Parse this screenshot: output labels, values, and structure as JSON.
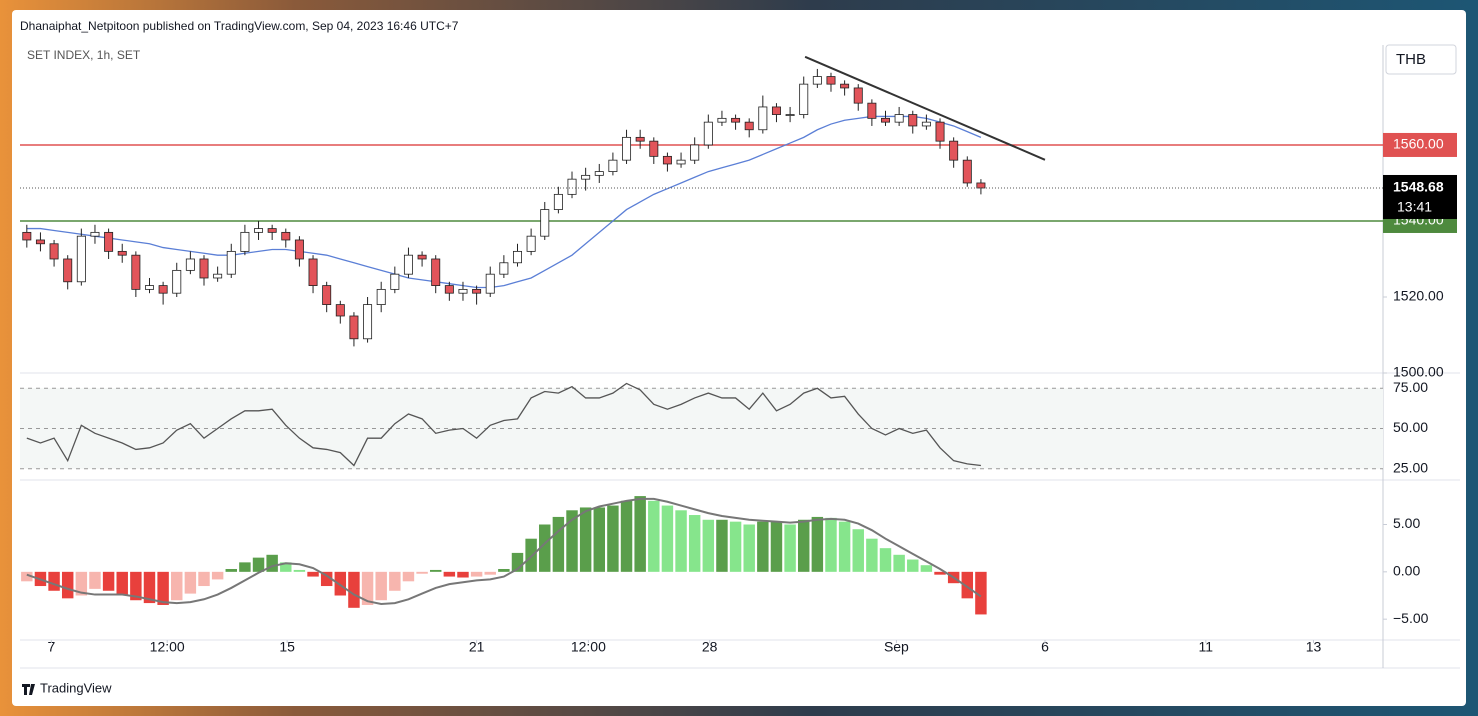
{
  "header": {
    "text": "Dhanaiphat_Netpitoon published on TradingView.com, Sep 04, 2023 16:46 UTC+7"
  },
  "footer": {
    "brand": "TradingView"
  },
  "chart_data": [
    {
      "type": "candlestick",
      "title": "SET INDEX, 1h, SET",
      "currency": "THB",
      "countdown": "13:41",
      "up_color": "#ffffff",
      "down_color": "#e2545a",
      "border_color": "#222222",
      "ma_color": "#5b7fd6",
      "xlim": [
        -0.5,
        99.5
      ],
      "xticks": [
        {
          "value": 1.8,
          "label": "7"
        },
        {
          "value": 10.3,
          "label": "12:00"
        },
        {
          "value": 19.1,
          "label": "15"
        },
        {
          "value": 33,
          "label": "21"
        },
        {
          "value": 41.2,
          "label": "12:00"
        },
        {
          "value": 50.1,
          "label": "28"
        },
        {
          "value": 63.8,
          "label": "Sep"
        },
        {
          "value": 74.7,
          "label": "6"
        },
        {
          "value": 86.5,
          "label": "11"
        },
        {
          "value": 94.4,
          "label": "13"
        }
      ],
      "ylim": [
        1500,
        1586.3
      ],
      "yticks": [
        {
          "value": 1520,
          "label": "1520.00"
        },
        {
          "value": 1500,
          "label": "1500.00"
        }
      ],
      "hlines": [
        {
          "value": 1560,
          "label": "1560.00",
          "color": "#e05252"
        },
        {
          "value": 1540,
          "label": "1540.00",
          "color": "#4e8a3e"
        }
      ],
      "trendline": {
        "x": [
          57.1,
          74.7
        ],
        "y": [
          1583.2,
          1556.1
        ],
        "color": "#333333"
      },
      "ohlc": [
        [
          1537,
          1539,
          1533,
          1535
        ],
        [
          1535,
          1537,
          1532,
          1534
        ],
        [
          1534,
          1535,
          1528,
          1530
        ],
        [
          1530,
          1531,
          1522,
          1524
        ],
        [
          1524,
          1538,
          1523,
          1536
        ],
        [
          1536,
          1539,
          1534,
          1537
        ],
        [
          1537,
          1538,
          1530,
          1532
        ],
        [
          1532,
          1534,
          1529,
          1531
        ],
        [
          1531,
          1532,
          1520,
          1522
        ],
        [
          1522,
          1525,
          1521,
          1523
        ],
        [
          1523,
          1524,
          1518,
          1521
        ],
        [
          1521,
          1529,
          1520,
          1527
        ],
        [
          1527,
          1532,
          1526,
          1530
        ],
        [
          1530,
          1531,
          1523,
          1525
        ],
        [
          1525,
          1528,
          1524,
          1526
        ],
        [
          1526,
          1534,
          1525,
          1532
        ],
        [
          1532,
          1539,
          1531,
          1537
        ],
        [
          1537,
          1540,
          1535,
          1538
        ],
        [
          1538,
          1539,
          1535,
          1537
        ],
        [
          1537,
          1538,
          1533,
          1535
        ],
        [
          1535,
          1536,
          1528,
          1530
        ],
        [
          1530,
          1531,
          1521,
          1523
        ],
        [
          1523,
          1524,
          1516,
          1518
        ],
        [
          1518,
          1519,
          1513,
          1515
        ],
        [
          1515,
          1516,
          1507,
          1509
        ],
        [
          1509,
          1520,
          1508,
          1518
        ],
        [
          1518,
          1524,
          1516,
          1522
        ],
        [
          1522,
          1528,
          1521,
          1526
        ],
        [
          1526,
          1533,
          1525,
          1531
        ],
        [
          1531,
          1532,
          1528,
          1530
        ],
        [
          1530,
          1531,
          1521,
          1523
        ],
        [
          1523,
          1524,
          1519,
          1521
        ],
        [
          1521,
          1524,
          1519,
          1522
        ],
        [
          1522,
          1523,
          1518,
          1521
        ],
        [
          1521,
          1528,
          1520,
          1526
        ],
        [
          1526,
          1531,
          1525,
          1529
        ],
        [
          1529,
          1534,
          1528,
          1532
        ],
        [
          1532,
          1538,
          1531,
          1536
        ],
        [
          1536,
          1545,
          1535,
          1543
        ],
        [
          1543,
          1549,
          1542,
          1547
        ],
        [
          1547,
          1553,
          1546,
          1551
        ],
        [
          1551,
          1554,
          1548,
          1552
        ],
        [
          1552,
          1555,
          1550,
          1553
        ],
        [
          1553,
          1558,
          1552,
          1556
        ],
        [
          1556,
          1564,
          1555,
          1562
        ],
        [
          1562,
          1564,
          1559,
          1561
        ],
        [
          1561,
          1562,
          1555,
          1557
        ],
        [
          1557,
          1558,
          1553,
          1555
        ],
        [
          1555,
          1558,
          1554,
          1556
        ],
        [
          1556,
          1562,
          1555,
          1560
        ],
        [
          1560,
          1568,
          1559,
          1566
        ],
        [
          1566,
          1569,
          1565,
          1567
        ],
        [
          1567,
          1568,
          1564,
          1566
        ],
        [
          1566,
          1567,
          1562,
          1564
        ],
        [
          1564,
          1573,
          1563,
          1570
        ],
        [
          1570,
          1571,
          1566,
          1568
        ],
        [
          1568,
          1570,
          1566,
          1568
        ],
        [
          1568,
          1578,
          1567,
          1576
        ],
        [
          1576,
          1580,
          1575,
          1578
        ],
        [
          1578,
          1579,
          1574,
          1576
        ],
        [
          1576,
          1577,
          1573,
          1575
        ],
        [
          1575,
          1576,
          1569,
          1571
        ],
        [
          1571,
          1572,
          1565,
          1567
        ],
        [
          1567,
          1569,
          1565,
          1566
        ],
        [
          1566,
          1570,
          1565,
          1568
        ],
        [
          1568,
          1569,
          1563,
          1565
        ],
        [
          1565,
          1568,
          1564,
          1566
        ],
        [
          1566,
          1567,
          1559,
          1561
        ],
        [
          1561,
          1562,
          1554,
          1556
        ],
        [
          1556,
          1557,
          1549,
          1550
        ],
        [
          1550,
          1551,
          1547,
          1548.68
        ]
      ],
      "ma": [
        1538,
        1538,
        1537.5,
        1537,
        1536.5,
        1536,
        1535.5,
        1535,
        1534.5,
        1534,
        1533,
        1532.5,
        1532,
        1531.5,
        1531,
        1531,
        1531.5,
        1532,
        1532.5,
        1532.5,
        1532,
        1531.5,
        1531,
        1530,
        1529,
        1528,
        1527,
        1526,
        1525,
        1524.5,
        1524,
        1523.5,
        1523,
        1522.5,
        1522.5,
        1523,
        1524,
        1525,
        1527,
        1529,
        1531,
        1534,
        1537,
        1540,
        1543,
        1545,
        1547,
        1548.5,
        1550,
        1551.5,
        1553,
        1554,
        1555,
        1556,
        1557.5,
        1559,
        1560.5,
        1562,
        1564,
        1565.5,
        1566.5,
        1567,
        1567.5,
        1567.5,
        1567.5,
        1567.5,
        1567,
        1566,
        1565,
        1563.5,
        1562
      ]
    },
    {
      "type": "line",
      "color": "#555555",
      "band_color": "#f4f7f6",
      "ylim": [
        18,
        84.5
      ],
      "yticks": [
        {
          "value": 75,
          "label": "75.00"
        },
        {
          "value": 50,
          "label": "50.00"
        },
        {
          "value": 25,
          "label": "25.00"
        }
      ],
      "values": [
        44,
        41,
        44,
        30,
        52,
        47,
        44,
        41,
        37,
        38,
        41,
        49,
        53,
        44,
        50,
        56,
        61,
        61,
        62,
        52,
        44,
        38,
        37,
        35,
        27,
        44,
        44,
        53,
        59,
        56,
        47,
        49,
        50,
        44,
        52,
        55,
        56,
        69,
        73,
        72,
        76,
        69,
        69,
        72,
        78,
        74,
        65,
        62,
        65,
        69,
        72,
        69,
        69,
        62,
        72,
        61,
        65,
        72,
        75,
        69,
        70,
        59,
        50,
        46,
        50,
        47,
        49,
        38,
        30,
        28,
        27
      ]
    },
    {
      "type": "bar",
      "colors": {
        "pos_rise": "#5a9e4b",
        "pos_fall": "#86e58c",
        "neg_fall": "#e8403c",
        "neg_rise": "#f7b5ae"
      },
      "line_color": "#777777",
      "ylim": [
        -7.2,
        9.7
      ],
      "yticks": [
        {
          "value": 5,
          "label": "5.00"
        },
        {
          "value": 0,
          "label": "0.00"
        },
        {
          "value": -5,
          "label": "−5.00"
        }
      ],
      "values": [
        -1,
        -1.5,
        -2,
        -2.8,
        -2.5,
        -1.8,
        -2,
        -2.5,
        -3,
        -3.3,
        -3.5,
        -3,
        -2.3,
        -1.5,
        -0.8,
        0.3,
        1,
        1.5,
        1.8,
        1,
        0.2,
        -0.5,
        -1.5,
        -2.5,
        -3.8,
        -3.5,
        -3,
        -2,
        -1,
        -0.2,
        0.2,
        -0.5,
        -0.6,
        -0.5,
        -0.3,
        0.3,
        2,
        3.5,
        5,
        5.8,
        6.5,
        6.8,
        6.8,
        7,
        7.5,
        8,
        7.5,
        7,
        6.5,
        6,
        5.5,
        5.5,
        5.3,
        5,
        5.3,
        5.3,
        5,
        5.5,
        5.8,
        5.7,
        5.3,
        4.5,
        3.5,
        2.5,
        1.8,
        1.3,
        0.7,
        -0.3,
        -1.2,
        -2.8,
        -4.5
      ],
      "line_values": [
        -0.3,
        -0.8,
        -1.3,
        -1.8,
        -2.2,
        -2.4,
        -2.4,
        -2.4,
        -2.6,
        -2.9,
        -3.2,
        -3.3,
        -3.2,
        -2.9,
        -2.4,
        -1.7,
        -0.9,
        -0.1,
        0.6,
        0.9,
        0.8,
        0.4,
        -0.4,
        -1.4,
        -2.4,
        -3.1,
        -3.4,
        -3.3,
        -2.9,
        -2.3,
        -1.7,
        -1.3,
        -1.1,
        -0.9,
        -0.8,
        -0.5,
        0.3,
        1.6,
        3,
        4.3,
        5.5,
        6.4,
        6.9,
        7.2,
        7.5,
        7.7,
        7.7,
        7.4,
        7,
        6.6,
        6.2,
        5.9,
        5.7,
        5.5,
        5.4,
        5.3,
        5.2,
        5.3,
        5.5,
        5.6,
        5.5,
        5.1,
        4.4,
        3.5,
        2.7,
        1.9,
        1.1,
        0.3,
        -0.6,
        -1.6,
        -2.6
      ]
    }
  ]
}
